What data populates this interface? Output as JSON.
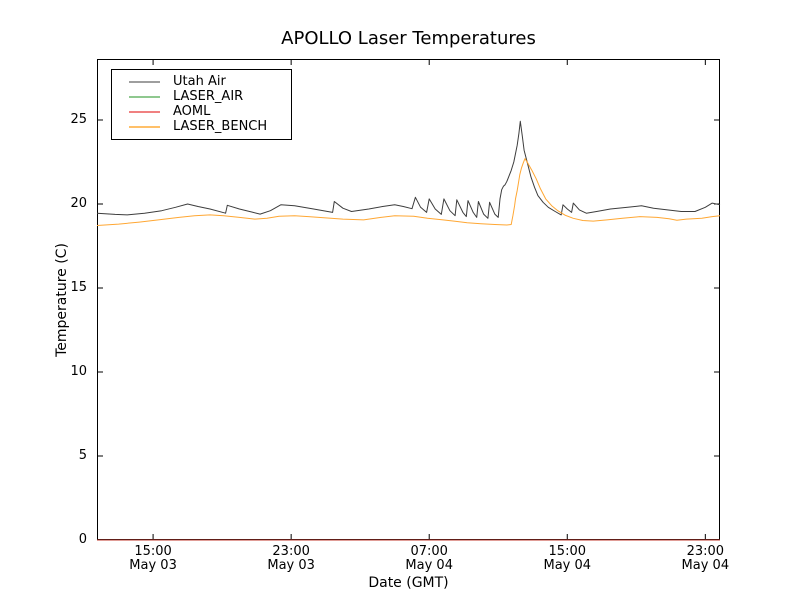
{
  "figure": {
    "background": "#ffffff",
    "frame_color": "#000000"
  },
  "chart_data": {
    "type": "line",
    "title": "APOLLO Laser Temperatures",
    "xlabel": "Date (GMT)",
    "ylabel": "Temperature (C)",
    "grid": false,
    "legend_position": "upper left",
    "x_unit": "hours since May 03 12:00 GMT",
    "xlim": [
      -0.25,
      35.85
    ],
    "ylim": [
      0,
      28.63
    ],
    "y_ticks": [
      0,
      5,
      10,
      15,
      20,
      25
    ],
    "x_ticks": [
      {
        "h": 3,
        "time": "15:00",
        "date": "May 03"
      },
      {
        "h": 11,
        "time": "23:00",
        "date": "May 03"
      },
      {
        "h": 19,
        "time": "07:00",
        "date": "May 04"
      },
      {
        "h": 27,
        "time": "15:00",
        "date": "May 04"
      },
      {
        "h": 35,
        "time": "23:00",
        "date": "May 04"
      }
    ],
    "series": [
      {
        "name": "Utah Air",
        "color": "#3d3d3d",
        "legend_color": "#9e9e9e",
        "points": [
          [
            -0.25,
            19.45
          ],
          [
            0.8,
            19.38
          ],
          [
            1.5,
            19.35
          ],
          [
            2.5,
            19.45
          ],
          [
            3.5,
            19.6
          ],
          [
            4.3,
            19.8
          ],
          [
            5.0,
            20.0
          ],
          [
            5.6,
            19.85
          ],
          [
            6.3,
            19.7
          ],
          [
            7.2,
            19.45
          ],
          [
            7.3,
            19.92
          ],
          [
            8.0,
            19.7
          ],
          [
            8.8,
            19.5
          ],
          [
            9.2,
            19.4
          ],
          [
            9.8,
            19.6
          ],
          [
            10.4,
            19.95
          ],
          [
            11.2,
            19.9
          ],
          [
            12.3,
            19.7
          ],
          [
            13.4,
            19.5
          ],
          [
            13.5,
            20.15
          ],
          [
            14.0,
            19.75
          ],
          [
            14.5,
            19.55
          ],
          [
            15.5,
            19.7
          ],
          [
            16.3,
            19.85
          ],
          [
            17.0,
            19.95
          ],
          [
            17.5,
            19.85
          ],
          [
            18.0,
            19.72
          ],
          [
            18.2,
            20.4
          ],
          [
            18.5,
            19.8
          ],
          [
            18.85,
            19.5
          ],
          [
            19.0,
            20.3
          ],
          [
            19.35,
            19.7
          ],
          [
            19.7,
            19.38
          ],
          [
            19.85,
            20.3
          ],
          [
            20.2,
            19.6
          ],
          [
            20.5,
            19.3
          ],
          [
            20.6,
            20.25
          ],
          [
            20.95,
            19.5
          ],
          [
            21.15,
            19.25
          ],
          [
            21.25,
            20.2
          ],
          [
            21.55,
            19.5
          ],
          [
            21.75,
            19.2
          ],
          [
            21.85,
            20.15
          ],
          [
            22.15,
            19.4
          ],
          [
            22.4,
            19.15
          ],
          [
            22.5,
            20.1
          ],
          [
            22.8,
            19.4
          ],
          [
            23.0,
            19.2
          ],
          [
            23.1,
            20.3
          ],
          [
            23.2,
            20.85
          ],
          [
            23.3,
            21.05
          ],
          [
            23.4,
            21.15
          ],
          [
            23.5,
            21.35
          ],
          [
            23.6,
            21.6
          ],
          [
            23.75,
            22.0
          ],
          [
            23.9,
            22.5
          ],
          [
            24.0,
            23.0
          ],
          [
            24.1,
            23.5
          ],
          [
            24.2,
            24.2
          ],
          [
            24.28,
            24.92
          ],
          [
            24.4,
            24.0
          ],
          [
            24.5,
            23.2
          ],
          [
            24.7,
            22.4
          ],
          [
            24.9,
            21.6
          ],
          [
            25.1,
            21.0
          ],
          [
            25.3,
            20.5
          ],
          [
            25.6,
            20.1
          ],
          [
            25.9,
            19.8
          ],
          [
            26.3,
            19.55
          ],
          [
            26.65,
            19.35
          ],
          [
            26.75,
            19.95
          ],
          [
            27.0,
            19.7
          ],
          [
            27.25,
            19.5
          ],
          [
            27.35,
            20.05
          ],
          [
            27.7,
            19.65
          ],
          [
            28.1,
            19.45
          ],
          [
            28.7,
            19.55
          ],
          [
            29.5,
            19.7
          ],
          [
            30.5,
            19.8
          ],
          [
            31.3,
            19.9
          ],
          [
            32.0,
            19.75
          ],
          [
            32.8,
            19.65
          ],
          [
            33.6,
            19.55
          ],
          [
            34.4,
            19.55
          ],
          [
            35.0,
            19.8
          ],
          [
            35.4,
            20.05
          ],
          [
            35.85,
            19.95
          ]
        ]
      },
      {
        "name": "LASER_AIR",
        "color": "#1e7a1e",
        "legend_color": "#8fc88f",
        "points": [
          [
            -0.25,
            0
          ],
          [
            35.85,
            0
          ]
        ]
      },
      {
        "name": "AOML",
        "color": "#c03a2e",
        "legend_color": "#f08080",
        "points": [
          [
            -0.25,
            0
          ],
          [
            35.85,
            0
          ]
        ]
      },
      {
        "name": "LASER_BENCH",
        "color": "#ffa733",
        "legend_color": "#ffc069",
        "points": [
          [
            -0.25,
            18.72
          ],
          [
            1.0,
            18.8
          ],
          [
            2.2,
            18.92
          ],
          [
            3.3,
            19.05
          ],
          [
            4.5,
            19.2
          ],
          [
            5.4,
            19.3
          ],
          [
            6.3,
            19.35
          ],
          [
            7.1,
            19.3
          ],
          [
            8.0,
            19.2
          ],
          [
            8.9,
            19.1
          ],
          [
            9.6,
            19.15
          ],
          [
            10.3,
            19.27
          ],
          [
            11.2,
            19.3
          ],
          [
            12.0,
            19.25
          ],
          [
            12.9,
            19.18
          ],
          [
            14.0,
            19.1
          ],
          [
            15.2,
            19.05
          ],
          [
            16.2,
            19.2
          ],
          [
            17.0,
            19.3
          ],
          [
            18.1,
            19.27
          ],
          [
            18.9,
            19.15
          ],
          [
            19.8,
            19.05
          ],
          [
            20.5,
            18.97
          ],
          [
            21.2,
            18.88
          ],
          [
            22.0,
            18.82
          ],
          [
            22.8,
            18.78
          ],
          [
            23.5,
            18.75
          ],
          [
            23.75,
            18.78
          ],
          [
            23.85,
            19.3
          ],
          [
            23.95,
            19.9
          ],
          [
            24.0,
            20.3
          ],
          [
            24.1,
            20.8
          ],
          [
            24.18,
            21.3
          ],
          [
            24.25,
            21.75
          ],
          [
            24.35,
            22.15
          ],
          [
            24.45,
            22.45
          ],
          [
            24.55,
            22.7
          ],
          [
            24.7,
            22.45
          ],
          [
            24.95,
            22.0
          ],
          [
            25.2,
            21.5
          ],
          [
            25.45,
            20.9
          ],
          [
            25.75,
            20.3
          ],
          [
            26.1,
            19.9
          ],
          [
            26.45,
            19.6
          ],
          [
            26.9,
            19.32
          ],
          [
            27.35,
            19.15
          ],
          [
            27.9,
            19.02
          ],
          [
            28.5,
            18.98
          ],
          [
            29.3,
            19.05
          ],
          [
            30.2,
            19.15
          ],
          [
            31.2,
            19.25
          ],
          [
            32.2,
            19.2
          ],
          [
            32.9,
            19.12
          ],
          [
            33.35,
            19.03
          ],
          [
            33.9,
            19.1
          ],
          [
            34.8,
            19.15
          ],
          [
            35.4,
            19.25
          ],
          [
            35.85,
            19.3
          ]
        ]
      }
    ]
  }
}
